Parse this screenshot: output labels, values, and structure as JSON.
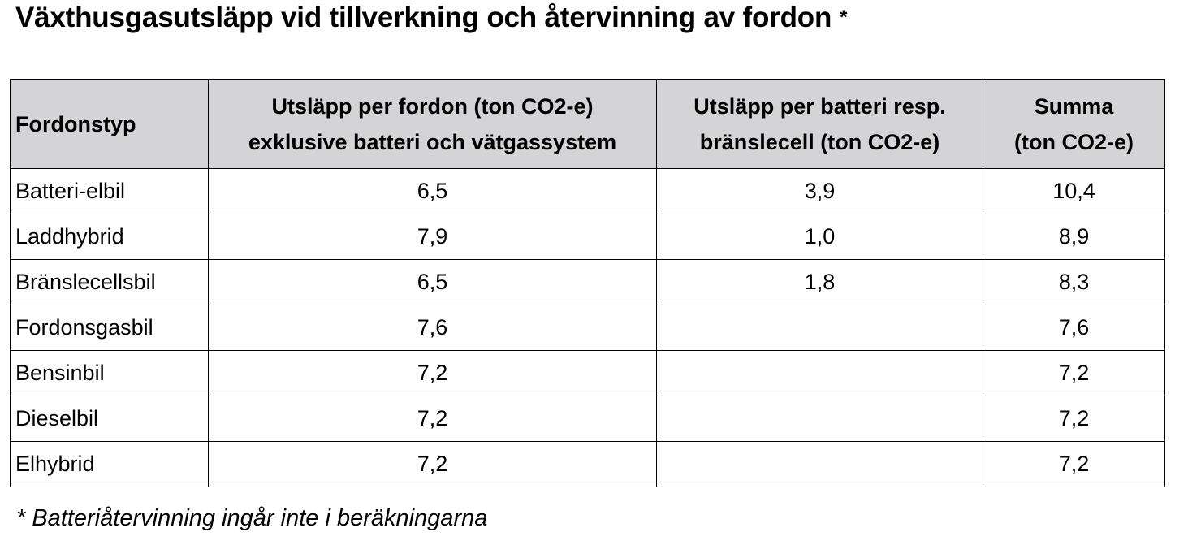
{
  "title": {
    "text": "Växthusgasutsläpp vid tillverkning och återvinning av fordon",
    "marker": "*"
  },
  "table": {
    "headers": [
      {
        "lines": [
          "Fordonstyp"
        ]
      },
      {
        "lines": [
          "Utsläpp per fordon (ton CO2-e)",
          "exklusive batteri och vätgassystem"
        ]
      },
      {
        "lines": [
          "Utsläpp per batteri resp.",
          "bränslecell (ton CO2-e)"
        ]
      },
      {
        "lines": [
          "Summa",
          "(ton CO2-e)"
        ]
      }
    ],
    "rows": [
      [
        "Batteri-elbil",
        "6,5",
        "3,9",
        "10,4"
      ],
      [
        "Laddhybrid",
        "7,9",
        "1,0",
        "8,9"
      ],
      [
        "Bränslecellsbil",
        "6,5",
        "1,8",
        "8,3"
      ],
      [
        "Fordonsgasbil",
        "7,6",
        "",
        "7,6"
      ],
      [
        "Bensinbil",
        "7,2",
        "",
        "7,2"
      ],
      [
        "Dieselbil",
        "7,2",
        "",
        "7,2"
      ],
      [
        "Elhybrid",
        "7,2",
        "",
        "7,2"
      ]
    ]
  },
  "footnote": "* Batteriåtervinning ingår inte i beräkningarna"
}
